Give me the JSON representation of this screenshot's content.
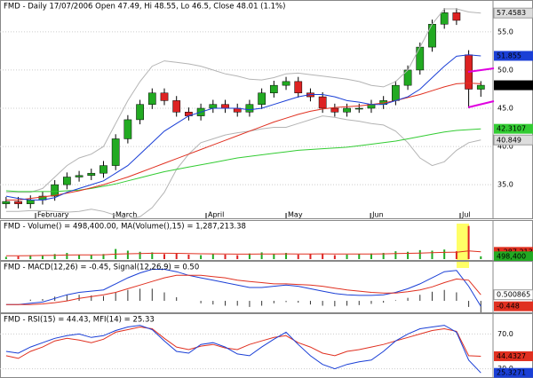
{
  "chart_data": [
    {
      "type": "candlestick",
      "title": "FMD - Daily 17/07/2006 Open 47.49, Hi 48.55, Lo 46.5, Close 48.01 (1.1%)",
      "xlim": [
        -0.5,
        40
      ],
      "xticks": [
        {
          "value": 2.42,
          "label": "February"
        },
        {
          "value": 8.84,
          "label": "March"
        },
        {
          "value": 16.43,
          "label": "April"
        },
        {
          "value": 23.0,
          "label": "May"
        },
        {
          "value": 29.94,
          "label": "Jun"
        },
        {
          "value": 37.3,
          "label": "Jul"
        }
      ],
      "ylim": [
        31.3,
        58.7
      ],
      "yticks": [
        {
          "value": 35,
          "label": "35.0"
        },
        {
          "value": 40,
          "label": "40.0"
        },
        {
          "value": 45,
          "label": "45.0"
        },
        {
          "value": 50,
          "label": "50.0"
        },
        {
          "value": 55,
          "label": "55.0"
        }
      ],
      "up_color": "#22aa22",
      "down_color": "#dd2222",
      "open": [
        32.5,
        32.8,
        32.5,
        33.0,
        33.5,
        35.0,
        36.0,
        36.2,
        36.5,
        37.5,
        41.0,
        43.5,
        45.5,
        47.0,
        46.0,
        44.5,
        44.0,
        45.0,
        45.5,
        45.0,
        44.5,
        45.5,
        47.0,
        48.0,
        48.5,
        47.0,
        46.5,
        45.0,
        44.5,
        45.0,
        45.0,
        45.5,
        46.0,
        48.0,
        50.0,
        53.0,
        56.0,
        57.5,
        52.0,
        47.49
      ],
      "high": [
        33.4,
        33.4,
        33.6,
        34.1,
        35.6,
        36.6,
        36.8,
        37.1,
        38.1,
        41.6,
        44.1,
        46.1,
        47.6,
        47.6,
        46.6,
        45.1,
        45.6,
        46.1,
        46.1,
        45.6,
        46.1,
        47.6,
        48.6,
        49.1,
        49.1,
        47.6,
        47.1,
        45.6,
        45.6,
        45.6,
        46.1,
        46.6,
        48.6,
        50.6,
        53.6,
        56.6,
        58.1,
        58.1,
        52.6,
        48.55
      ],
      "low": [
        31.9,
        31.9,
        31.9,
        32.4,
        32.9,
        34.4,
        35.4,
        35.6,
        35.9,
        36.9,
        40.4,
        42.9,
        44.9,
        45.4,
        43.9,
        43.4,
        43.4,
        44.4,
        44.4,
        43.9,
        43.9,
        44.9,
        46.4,
        47.4,
        46.4,
        45.9,
        44.4,
        43.9,
        43.9,
        44.4,
        44.4,
        44.9,
        45.4,
        47.4,
        49.4,
        52.4,
        55.4,
        55.9,
        45.0,
        46.5
      ],
      "close": [
        32.8,
        32.5,
        33.0,
        33.5,
        35.0,
        36.0,
        36.2,
        36.5,
        37.5,
        41.0,
        43.5,
        45.5,
        47.0,
        46.0,
        44.5,
        44.0,
        45.0,
        45.5,
        45.0,
        44.5,
        45.5,
        47.0,
        48.0,
        48.5,
        47.0,
        46.5,
        45.0,
        44.5,
        45.0,
        45.0,
        45.5,
        46.0,
        48.0,
        50.0,
        53.0,
        56.0,
        57.5,
        56.5,
        47.5,
        48.01
      ],
      "series": [
        {
          "color": "#b4b4b4",
          "values": [
            34,
            34,
            34,
            34.5,
            36,
            37.5,
            38.5,
            39,
            40,
            43,
            46,
            48.5,
            50.5,
            51.2,
            51,
            50.8,
            50.5,
            50,
            49.5,
            49.2,
            48.8,
            48.7,
            49,
            49.5,
            49.6,
            49.4,
            49.2,
            49,
            48.8,
            48.5,
            48,
            47.8,
            48.5,
            50,
            53,
            56,
            58,
            58,
            57.6,
            57.46
          ]
        },
        {
          "color": "#b4b4b4",
          "values": [
            31.5,
            31.5,
            31.6,
            31.6,
            31.5,
            31.4,
            31.5,
            31.8,
            31.5,
            31,
            30.5,
            30.8,
            32,
            34,
            37,
            39,
            40.5,
            41,
            41.5,
            41.8,
            42,
            42.3,
            42.5,
            42.5,
            43,
            43.5,
            44,
            43.8,
            43.5,
            43.3,
            43,
            42.8,
            42,
            40.5,
            38.5,
            37.5,
            38,
            39.5,
            40.5,
            40.85
          ]
        },
        {
          "color": "#33cc33",
          "values": [
            34.2,
            34.1,
            34.1,
            34.1,
            34.1,
            34.2,
            34.3,
            34.5,
            34.8,
            35.1,
            35.5,
            35.9,
            36.3,
            36.7,
            37.0,
            37.3,
            37.6,
            37.9,
            38.2,
            38.5,
            38.7,
            38.9,
            39.1,
            39.3,
            39.5,
            39.6,
            39.7,
            39.8,
            39.9,
            40.1,
            40.3,
            40.5,
            40.7,
            41,
            41.3,
            41.6,
            41.9,
            42.1,
            42.2,
            42.3
          ]
        },
        {
          "color": "#e03020",
          "values": [
            33,
            33,
            33.2,
            33.4,
            33.6,
            33.9,
            34.2,
            34.6,
            35,
            35.5,
            36,
            36.6,
            37.2,
            37.8,
            38.4,
            39,
            39.6,
            40.2,
            40.8,
            41.4,
            42,
            42.6,
            43.2,
            43.7,
            44.2,
            44.6,
            44.9,
            45.1,
            45.2,
            45.3,
            45.5,
            45.7,
            46,
            46.4,
            46.8,
            47.3,
            47.8,
            48.2,
            48.3,
            48.2
          ]
        },
        {
          "color": "#1a3fd6",
          "values": [
            33.5,
            33.2,
            33,
            33,
            33.3,
            34,
            34.5,
            35,
            35.5,
            36.5,
            37.5,
            39,
            40.5,
            42,
            43,
            44,
            44.5,
            45,
            45,
            45,
            44.8,
            45,
            45.5,
            46,
            46.5,
            46.8,
            46.8,
            46.5,
            46,
            45.8,
            45.5,
            45.5,
            46,
            46.5,
            47.5,
            49,
            50.5,
            51.8,
            52,
            51.85
          ]
        }
      ],
      "annotations": [
        {
          "value": 57.4583,
          "color": "#dddddd"
        },
        {
          "value": 51.855,
          "color": "#1a3fd6"
        },
        {
          "value": 48.01,
          "color": "#000000"
        },
        {
          "value": 42.3107,
          "color": "#33cc33"
        },
        {
          "value": 40.849,
          "color": "#dddddd"
        }
      ]
    },
    {
      "type": "bar",
      "title": "FMD - Volume() = 498,400.00, MA(Volume(),15) = 1,287,213.38",
      "xlim": [
        -0.5,
        40
      ],
      "ylim": [
        0,
        6000000
      ],
      "values": [
        400000,
        500000,
        700000,
        600000,
        900000,
        1100000,
        800000,
        700000,
        900000,
        1800000,
        1500000,
        1300000,
        1200000,
        900000,
        1000000,
        800000,
        700000,
        900000,
        800000,
        700000,
        1000000,
        1200000,
        900000,
        1100000,
        800000,
        900000,
        1000000,
        700000,
        800000,
        900000,
        1000000,
        1100000,
        1400000,
        1300000,
        1600000,
        1500000,
        1700000,
        1400000,
        5900000,
        498400
      ],
      "up_color": "#22aa22",
      "down_color": "#dd2222",
      "series": [
        {
          "color": "#e03020",
          "values": [
            600000,
            600000,
            620000,
            640000,
            680000,
            720000,
            740000,
            750000,
            780000,
            880000,
            950000,
            1000000,
            1050000,
            1050000,
            1030000,
            1000000,
            950000,
            930000,
            910000,
            880000,
            880000,
            900000,
            910000,
            930000,
            920000,
            920000,
            930000,
            910000,
            900000,
            900000,
            910000,
            930000,
            980000,
            1020000,
            1080000,
            1130000,
            1200000,
            1230000,
            1450000,
            1287213.38
          ]
        }
      ],
      "annotations": [
        {
          "value": 1287213,
          "label": "1,287,213",
          "color": "#e03020"
        },
        {
          "value": 498400,
          "label": "498,400",
          "color": "#22aa22"
        }
      ]
    },
    {
      "type": "macd",
      "title": "FMD - MACD(12,26) = -0.45, Signal(12,26,9) = 0.50",
      "xlim": [
        -0.5,
        40
      ],
      "ylim": [
        -0.8,
        3.0
      ],
      "histogram": [
        0,
        0,
        0.1,
        0.15,
        0.35,
        0.5,
        0.5,
        0.45,
        0.4,
        0.7,
        0.9,
        1.0,
        1.0,
        0.7,
        0.3,
        0,
        -0.2,
        -0.3,
        -0.4,
        -0.4,
        -0.5,
        -0.4,
        -0.2,
        -0.1,
        -0.15,
        -0.3,
        -0.4,
        -0.45,
        -0.4,
        -0.35,
        -0.25,
        -0.15,
        0.05,
        0.25,
        0.5,
        0.75,
        0.9,
        0.7,
        -0.5,
        -0.95
      ],
      "histogram_color": "#333333",
      "series": [
        {
          "color": "#1a3fd6",
          "values": [
            -0.3,
            -0.3,
            -0.2,
            -0.1,
            0.2,
            0.5,
            0.7,
            0.8,
            0.9,
            1.4,
            1.9,
            2.3,
            2.6,
            2.6,
            2.4,
            2.1,
            1.9,
            1.7,
            1.5,
            1.3,
            1.1,
            1.1,
            1.2,
            1.3,
            1.2,
            1.0,
            0.8,
            0.6,
            0.5,
            0.45,
            0.45,
            0.5,
            0.7,
            1.0,
            1.4,
            1.9,
            2.4,
            2.5,
            1.2,
            -0.45
          ]
        },
        {
          "color": "#e03020",
          "values": [
            -0.3,
            -0.3,
            -0.3,
            -0.25,
            -0.15,
            0.0,
            0.2,
            0.35,
            0.5,
            0.7,
            1.0,
            1.3,
            1.6,
            1.9,
            2.1,
            2.1,
            2.1,
            2.0,
            1.9,
            1.7,
            1.6,
            1.5,
            1.4,
            1.4,
            1.35,
            1.3,
            1.2,
            1.05,
            0.9,
            0.8,
            0.7,
            0.65,
            0.65,
            0.75,
            0.9,
            1.15,
            1.5,
            1.8,
            1.7,
            0.5
          ]
        }
      ],
      "annotations": [
        {
          "value": 0.500865,
          "color": "#ffffff"
        },
        {
          "value": -0.448,
          "color": "#e03020"
        }
      ]
    },
    {
      "type": "line",
      "title": "FMD - RSI(15) = 44.43, MFI(14) = 25.33",
      "xlim": [
        -0.5,
        40
      ],
      "ylim": [
        23.5,
        86.7
      ],
      "yticks": [
        {
          "value": 70,
          "label": "70.0"
        },
        {
          "value": 30,
          "label": "30.0"
        }
      ],
      "series": [
        {
          "color": "#e03020",
          "values": [
            45,
            42,
            50,
            55,
            62,
            65,
            63,
            60,
            64,
            72,
            75,
            78,
            76,
            65,
            55,
            52,
            56,
            58,
            54,
            52,
            58,
            62,
            66,
            68,
            60,
            55,
            48,
            45,
            50,
            52,
            55,
            58,
            62,
            66,
            70,
            74,
            76,
            73,
            45,
            44.43
          ]
        },
        {
          "color": "#1a3fd6",
          "values": [
            50,
            48,
            55,
            60,
            65,
            68,
            70,
            66,
            68,
            74,
            78,
            80,
            75,
            62,
            50,
            48,
            58,
            60,
            55,
            47,
            45,
            55,
            64,
            72,
            58,
            45,
            35,
            30,
            35,
            38,
            40,
            50,
            62,
            70,
            76,
            78,
            80,
            72,
            40,
            25.33
          ]
        }
      ],
      "annotations": [
        {
          "value": 44.4327,
          "color": "#e03020"
        },
        {
          "value": 25.3271,
          "color": "#1a3fd6"
        }
      ]
    }
  ]
}
